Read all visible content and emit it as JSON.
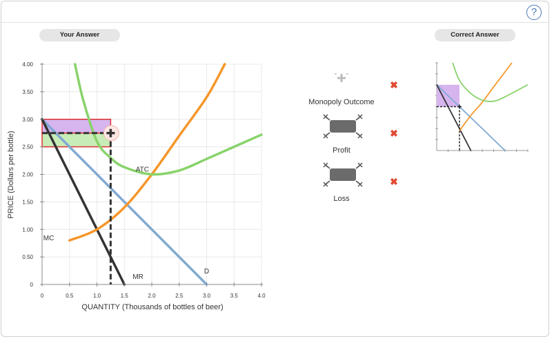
{
  "header": {
    "help_label": "?"
  },
  "tabs": {
    "your_answer": "Your Answer",
    "correct_answer": "Correct Answer"
  },
  "chart_data": {
    "type": "line",
    "xlabel": "QUANTITY (Thousands of bottles of beer)",
    "ylabel": "PRICE (Dollars per bottle)",
    "xlim": [
      0,
      4
    ],
    "ylim": [
      0,
      4
    ],
    "x_ticks": [
      "0",
      "0.5",
      "1.0",
      "1.5",
      "2.0",
      "2.5",
      "3.0",
      "3.5",
      "4.0"
    ],
    "y_ticks": [
      "0",
      "0.50",
      "1.00",
      "1.50",
      "2.00",
      "2.50",
      "3.00",
      "3.50",
      "4.00"
    ],
    "grid": true,
    "series": [
      {
        "name": "D",
        "color": "#80aad2",
        "points": [
          [
            0,
            3.0
          ],
          [
            3.0,
            0
          ]
        ]
      },
      {
        "name": "MR",
        "color": "#333333",
        "points": [
          [
            0,
            3.0
          ],
          [
            1.5,
            0
          ]
        ]
      },
      {
        "name": "MC",
        "color": "#f5962a",
        "points": [
          [
            0.5,
            0.8
          ],
          [
            1.0,
            1.0
          ],
          [
            1.5,
            1.4
          ],
          [
            2.0,
            2.0
          ],
          [
            2.5,
            2.7
          ],
          [
            3.0,
            3.4
          ],
          [
            3.33,
            4.0
          ]
        ]
      },
      {
        "name": "ATC",
        "color": "#88d36a",
        "points": [
          [
            0.6,
            4.0
          ],
          [
            0.75,
            3.35
          ],
          [
            1.0,
            2.6
          ],
          [
            1.25,
            2.3
          ],
          [
            1.5,
            2.13
          ],
          [
            2.0,
            2.0
          ],
          [
            2.5,
            2.07
          ],
          [
            3.0,
            2.28
          ],
          [
            3.5,
            2.5
          ],
          [
            4.0,
            2.72
          ]
        ]
      }
    ],
    "monopoly_outcome_point": {
      "x": 1.25,
      "y": 2.75
    },
    "profit_area": {
      "q": [
        0,
        1.25
      ],
      "p": [
        2.5,
        2.75
      ]
    },
    "loss_area": {
      "q": [
        0,
        1.25
      ],
      "p": [
        2.75,
        3.0
      ]
    }
  },
  "palette": {
    "items": [
      {
        "id": "monopoly",
        "label": "Monopoly Outcome",
        "icon": "plus-point-icon",
        "status": "✖"
      },
      {
        "id": "profit",
        "label": "Profit",
        "icon": "area-tool-icon",
        "status": "✖"
      },
      {
        "id": "loss",
        "label": "Loss",
        "icon": "area-tool-icon",
        "status": "✖"
      }
    ],
    "status_color": "#e04a30"
  },
  "correct_answer": {
    "series": [
      {
        "name": "D",
        "color": "#80aad2"
      },
      {
        "name": "MR",
        "color": "#333333"
      },
      {
        "name": "MC",
        "color": "#f5962a"
      },
      {
        "name": "ATC",
        "color": "#88d36a"
      }
    ]
  }
}
